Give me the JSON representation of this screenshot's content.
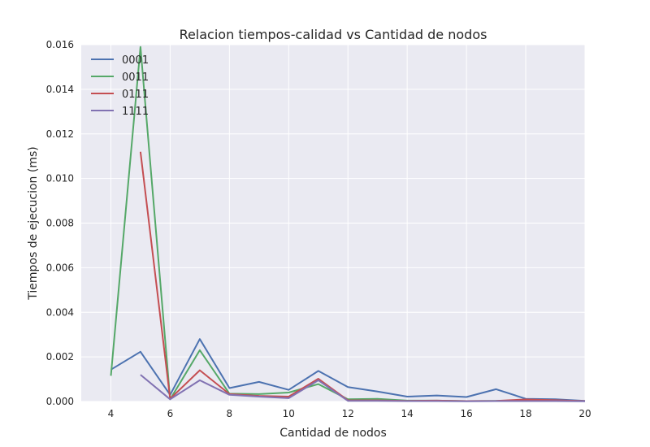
{
  "chart_data": {
    "type": "line",
    "title": "Relacion tiempos-calidad vs Cantidad de nodos",
    "xlabel": "Cantidad de nodos",
    "ylabel": "Tiempos de ejecucion (ms)",
    "xlim": [
      3,
      20
    ],
    "ylim": [
      0,
      0.016
    ],
    "x_ticks": [
      "4",
      "6",
      "8",
      "10",
      "12",
      "14",
      "16",
      "18",
      "20"
    ],
    "y_ticks": [
      "0.000",
      "0.002",
      "0.004",
      "0.006",
      "0.008",
      "0.010",
      "0.012",
      "0.014",
      "0.016"
    ],
    "grid": true,
    "legend_position": "top-left",
    "series": [
      {
        "name": "0001",
        "color": "#4C72B0",
        "x": [
          4,
          5,
          6,
          7,
          8,
          9,
          10,
          11,
          12,
          13,
          14,
          15,
          16,
          17,
          18,
          19,
          20
        ],
        "values": [
          0.00143,
          0.00223,
          0.0003,
          0.0028,
          0.0006,
          0.00088,
          0.00052,
          0.00137,
          0.00065,
          0.00045,
          0.00022,
          0.00027,
          0.0002,
          0.00055,
          0.00012,
          0.0001,
          3e-05
        ]
      },
      {
        "name": "0011",
        "color": "#55A868",
        "x": [
          4,
          5,
          6,
          7,
          8,
          9,
          10,
          11,
          12,
          13,
          14,
          15,
          16,
          17,
          18,
          19,
          20
        ],
        "values": [
          0.00115,
          0.0159,
          0.0001,
          0.0023,
          0.00035,
          0.00033,
          0.0004,
          0.00078,
          0.0001,
          0.00012,
          4e-05,
          4e-05,
          2e-05,
          3e-05,
          5e-05,
          3e-05,
          2e-05
        ]
      },
      {
        "name": "0111",
        "color": "#C44E52",
        "x": [
          5,
          6,
          7,
          8,
          9,
          10,
          11,
          12,
          13,
          14,
          15,
          16,
          17,
          18,
          19,
          20
        ],
        "values": [
          0.0112,
          0.00012,
          0.0014,
          0.00033,
          0.00025,
          0.00022,
          0.00102,
          5e-05,
          5e-05,
          3e-05,
          4e-05,
          2e-05,
          3e-05,
          9e-05,
          6e-05,
          2e-05
        ]
      },
      {
        "name": "1111",
        "color": "#8172B2",
        "x": [
          5,
          6,
          7,
          8,
          9,
          10,
          11,
          12,
          13,
          14,
          15,
          16,
          17,
          18,
          19,
          20
        ],
        "values": [
          0.0012,
          0.0001,
          0.00095,
          0.0003,
          0.00022,
          0.00015,
          0.00095,
          3e-05,
          3e-05,
          2e-05,
          2e-05,
          1e-05,
          2e-05,
          2e-05,
          2e-05,
          1e-05
        ]
      }
    ]
  }
}
